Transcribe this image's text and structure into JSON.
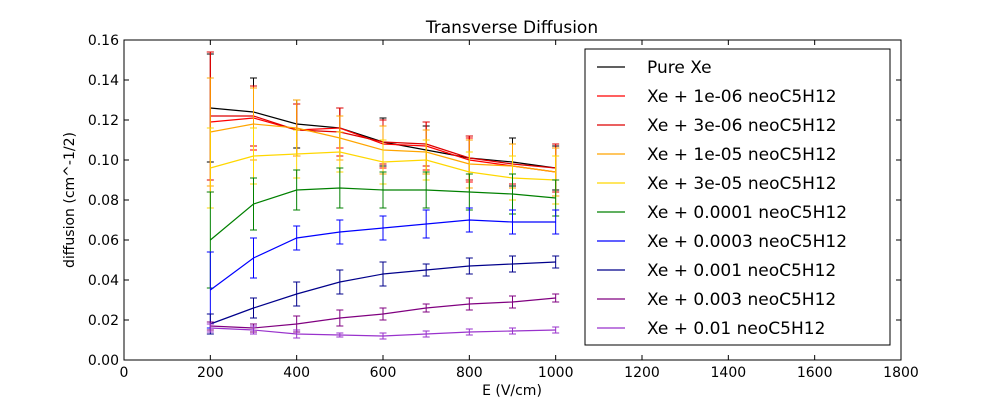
{
  "chart_data": {
    "type": "line",
    "title": "Transverse Diffusion",
    "xlabel": "E (V/cm)",
    "ylabel": "diffusion (cm^-1/2)",
    "xlim": [
      0,
      1800
    ],
    "ylim": [
      0.0,
      0.16
    ],
    "xticks": [
      0,
      200,
      400,
      600,
      800,
      1000,
      1200,
      1400,
      1600,
      1800
    ],
    "xtick_labels": [
      "0",
      "200",
      "400",
      "600",
      "800",
      "1000",
      "1200",
      "1400",
      "1600",
      "1800"
    ],
    "yticks": [
      0.0,
      0.02,
      0.04,
      0.06,
      0.08,
      0.1,
      0.12,
      0.14,
      0.16
    ],
    "ytick_labels": [
      "0.00",
      "0.02",
      "0.04",
      "0.06",
      "0.08",
      "0.10",
      "0.12",
      "0.14",
      "0.16"
    ],
    "grid": false,
    "legend_position": "top-right",
    "x": [
      200,
      300,
      400,
      500,
      600,
      700,
      800,
      900,
      1000
    ],
    "series": [
      {
        "name": "Pure Xe",
        "color": "#000000",
        "values": [
          0.126,
          0.124,
          0.118,
          0.116,
          0.109,
          0.105,
          0.101,
          0.099,
          0.096
        ],
        "errors": [
          0.027,
          0.017,
          0.012,
          0.01,
          0.012,
          0.012,
          0.011,
          0.012,
          0.011
        ]
      },
      {
        "name": "Xe + 1e-06 neoC5H12",
        "color": "#ff0000",
        "values": [
          0.119,
          0.121,
          0.115,
          0.116,
          0.108,
          0.107,
          0.1,
          0.097,
          0.094
        ],
        "errors": [
          0.035,
          0.016,
          0.013,
          0.01,
          0.012,
          0.012,
          0.011,
          0.011,
          0.012
        ]
      },
      {
        "name": "Xe + 3e-06 neoC5H12",
        "color": "#dd0000",
        "values": [
          0.122,
          0.122,
          0.115,
          0.114,
          0.109,
          0.108,
          0.101,
          0.098,
          0.096
        ],
        "errors": [
          0.032,
          0.015,
          0.013,
          0.012,
          0.011,
          0.011,
          0.011,
          0.01,
          0.012
        ]
      },
      {
        "name": "Xe + 1e-05 neoC5H12",
        "color": "#ffa500",
        "values": [
          0.114,
          0.118,
          0.116,
          0.111,
          0.105,
          0.104,
          0.098,
          0.097,
          0.094
        ],
        "errors": [
          0.027,
          0.018,
          0.014,
          0.011,
          0.012,
          0.011,
          0.012,
          0.011,
          0.012
        ]
      },
      {
        "name": "Xe + 3e-05 neoC5H12",
        "color": "#ffd700",
        "values": [
          0.096,
          0.102,
          0.103,
          0.104,
          0.099,
          0.1,
          0.094,
          0.091,
          0.09
        ],
        "errors": [
          0.02,
          0.014,
          0.012,
          0.01,
          0.011,
          0.01,
          0.01,
          0.011,
          0.012
        ]
      },
      {
        "name": "Xe + 0.0001 neoC5H12",
        "color": "#008000",
        "values": [
          0.06,
          0.078,
          0.085,
          0.086,
          0.085,
          0.085,
          0.084,
          0.083,
          0.081
        ],
        "errors": [
          0.024,
          0.013,
          0.01,
          0.01,
          0.009,
          0.009,
          0.009,
          0.01,
          0.009
        ]
      },
      {
        "name": "Xe + 0.0003 neoC5H12",
        "color": "#0000ff",
        "values": [
          0.035,
          0.051,
          0.061,
          0.064,
          0.066,
          0.068,
          0.07,
          0.069,
          0.069
        ],
        "errors": [
          0.019,
          0.01,
          0.006,
          0.006,
          0.006,
          0.007,
          0.006,
          0.006,
          0.006
        ]
      },
      {
        "name": "Xe + 0.001 neoC5H12",
        "color": "#00008b",
        "values": [
          0.018,
          0.026,
          0.033,
          0.039,
          0.043,
          0.045,
          0.047,
          0.048,
          0.049
        ],
        "errors": [
          0.005,
          0.005,
          0.006,
          0.006,
          0.006,
          0.003,
          0.004,
          0.004,
          0.003
        ]
      },
      {
        "name": "Xe + 0.003 neoC5H12",
        "color": "#800080",
        "values": [
          0.017,
          0.016,
          0.018,
          0.021,
          0.023,
          0.026,
          0.028,
          0.029,
          0.031
        ],
        "errors": [
          0.002,
          0.002,
          0.004,
          0.004,
          0.003,
          0.002,
          0.003,
          0.003,
          0.002
        ]
      },
      {
        "name": "Xe + 0.01 neoC5H12",
        "color": "#9932cc",
        "values": [
          0.016,
          0.015,
          0.013,
          0.0125,
          0.012,
          0.013,
          0.014,
          0.0145,
          0.015
        ],
        "errors": [
          0.002,
          0.002,
          0.002,
          0.001,
          0.0015,
          0.0015,
          0.0015,
          0.0015,
          0.0015
        ]
      }
    ]
  }
}
